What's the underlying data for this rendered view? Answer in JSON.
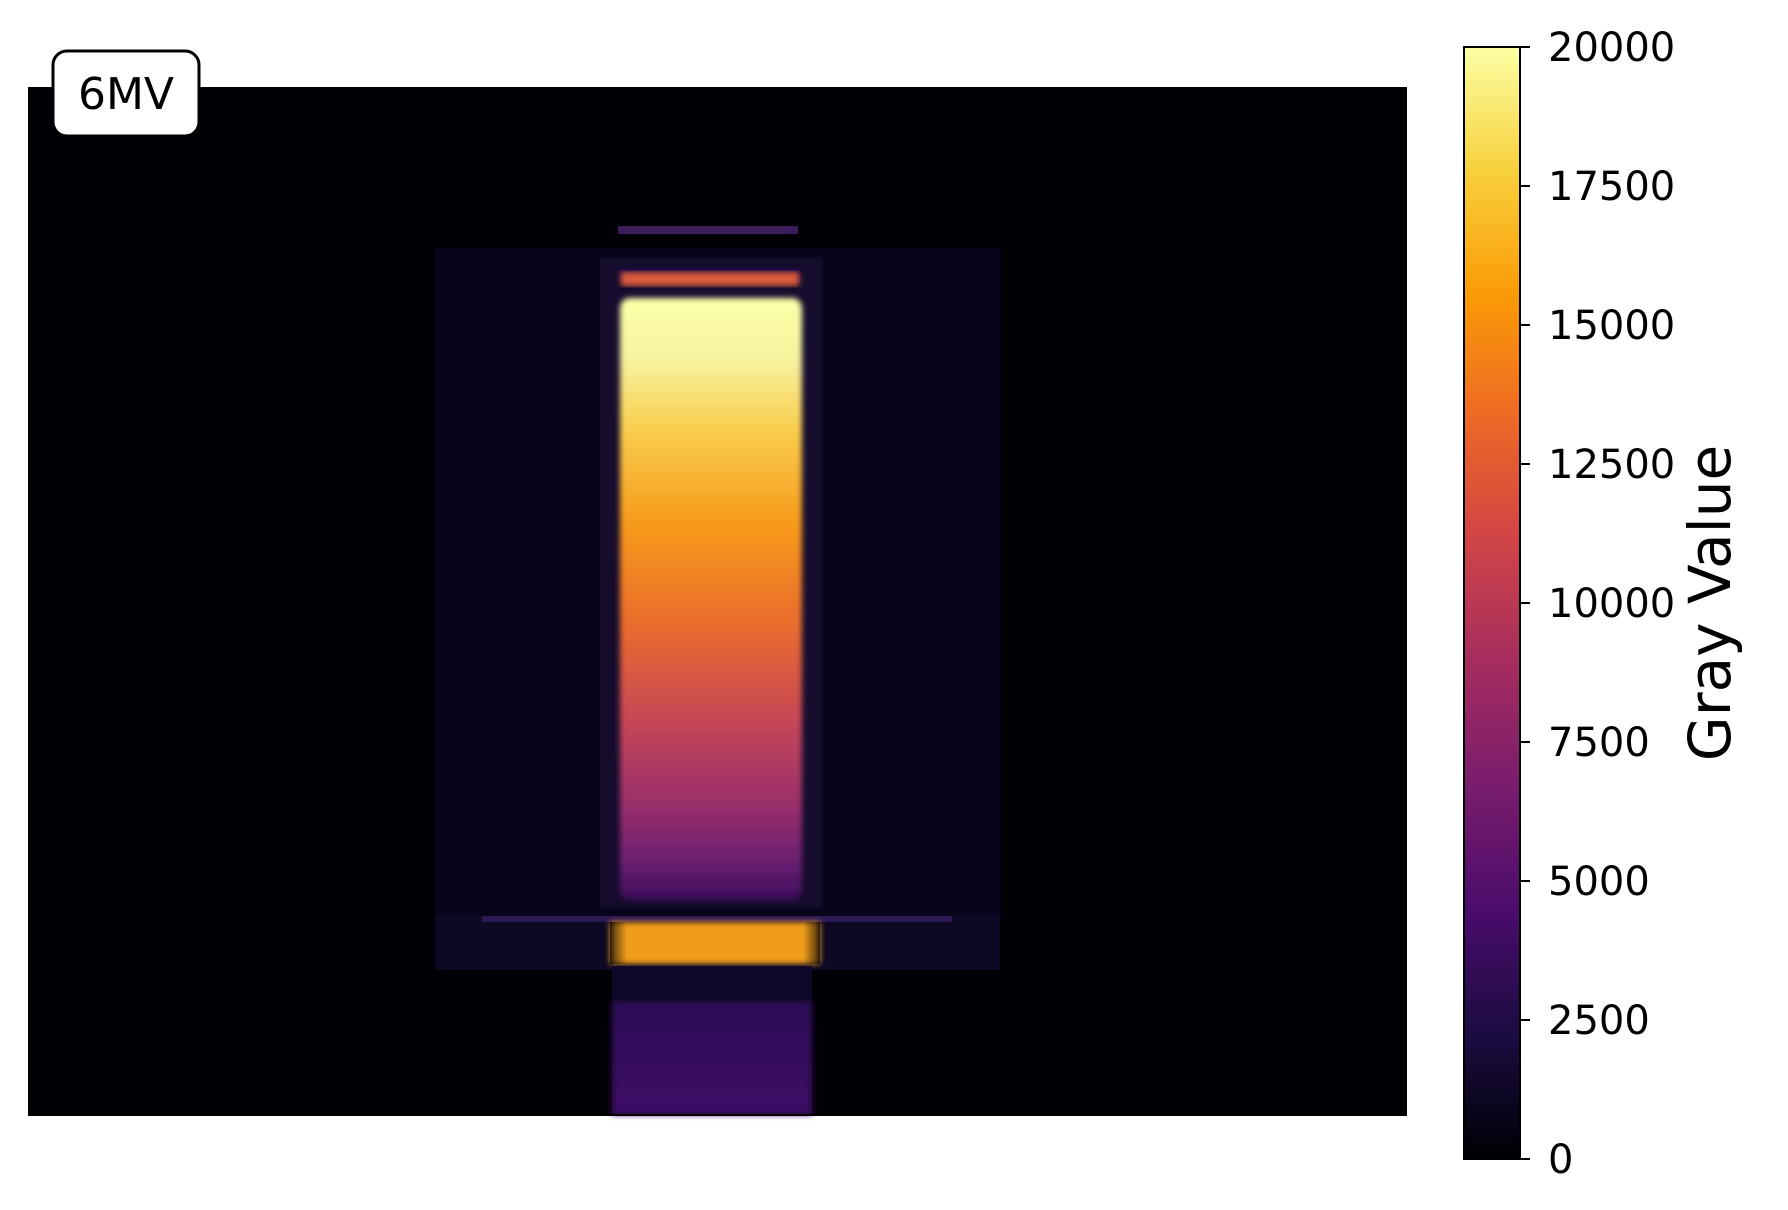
{
  "image": {
    "label": "6MV",
    "colormap": "inferno",
    "background_level": 0
  },
  "colorbar": {
    "title": "Gray Value",
    "min": 0,
    "max": 20000,
    "ticks": [
      "20000",
      "17500",
      "15000",
      "12500",
      "10000",
      "7500",
      "5000",
      "2500",
      "0"
    ],
    "colors": [
      "#000004",
      "#1b0c41",
      "#4a0c6b",
      "#781c6d",
      "#a52c60",
      "#cf4446",
      "#ed6925",
      "#fb9b06",
      "#f7d13d",
      "#fcffa4"
    ]
  }
}
